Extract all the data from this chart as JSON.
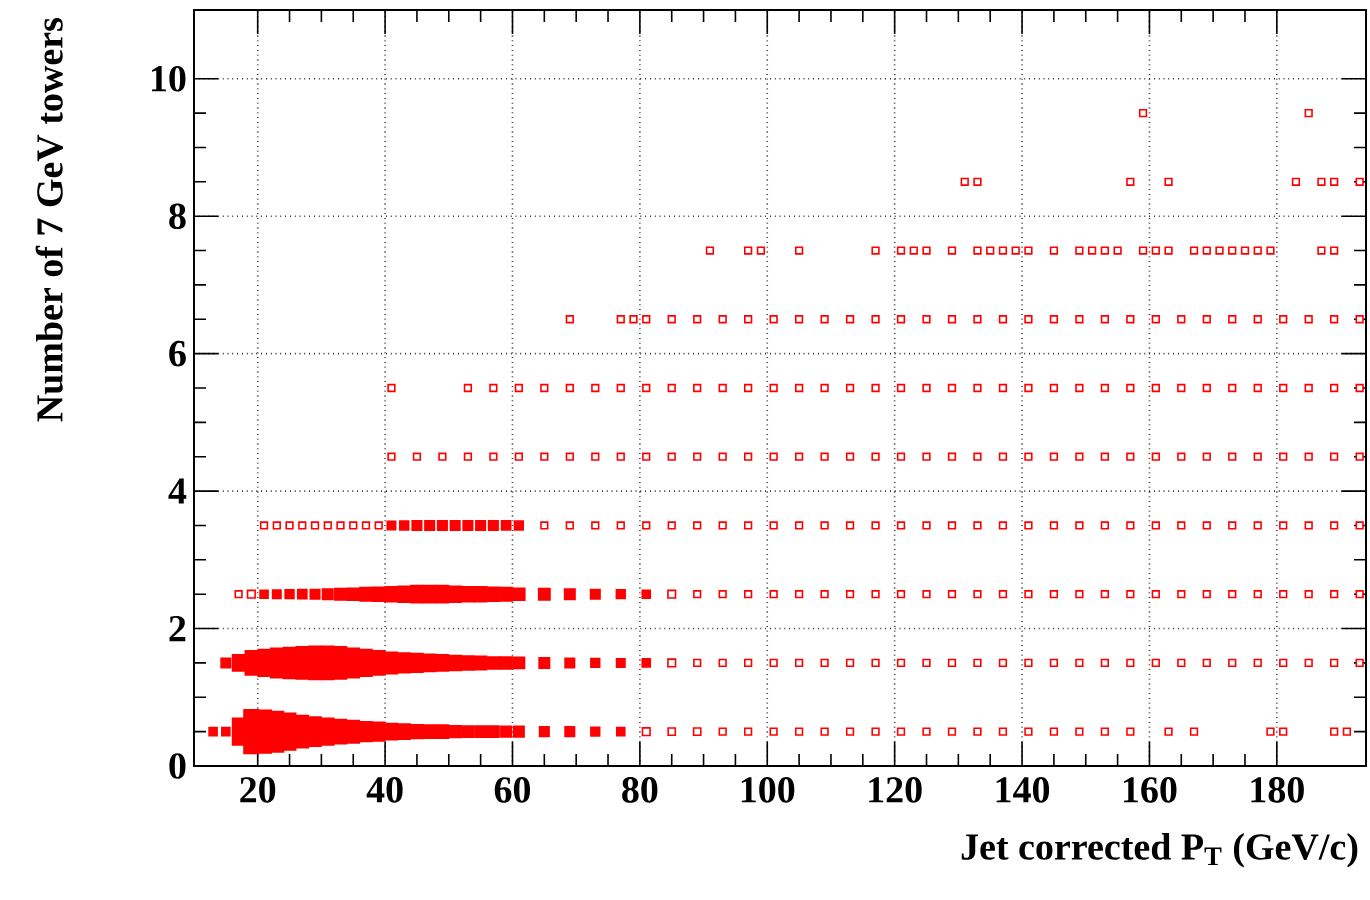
{
  "chart_data": {
    "type": "bubble",
    "xlabel": "Jet corrected P$_{T}$ (GeV/c)",
    "ylabel": "Number of 7 GeV towers",
    "xlim": [
      10,
      194
    ],
    "ylim": [
      0,
      11
    ],
    "xticks": [
      20,
      40,
      60,
      80,
      100,
      120,
      140,
      160,
      180
    ],
    "yticks": [
      0,
      2,
      4,
      6,
      8,
      10
    ],
    "grid": true,
    "marker": "square",
    "series": [
      {
        "color": "#ff0000",
        "x": [
          13,
          15,
          17,
          19,
          21,
          23,
          25,
          27,
          29,
          31,
          33,
          35,
          37,
          39,
          41,
          43,
          45,
          47,
          49,
          51,
          53,
          55,
          57,
          59,
          61,
          65,
          69,
          73,
          77,
          81,
          85,
          89,
          93,
          97,
          101,
          105,
          109,
          113,
          117,
          121,
          125,
          129,
          133,
          137,
          141,
          145,
          149,
          153,
          157,
          163,
          167,
          179,
          181,
          189,
          191
        ],
        "values": [
          0.5,
          0.5,
          0.5,
          0.5,
          0.5,
          0.5,
          0.5,
          0.5,
          0.5,
          0.5,
          0.5,
          0.5,
          0.5,
          0.5,
          0.5,
          0.5,
          0.5,
          0.5,
          0.5,
          0.5,
          0.5,
          0.5,
          0.5,
          0.5,
          0.5,
          0.5,
          0.5,
          0.5,
          0.5,
          0.5,
          0.5,
          0.5,
          0.5,
          0.5,
          0.5,
          0.5,
          0.5,
          0.5,
          0.5,
          0.5,
          0.5,
          0.5,
          0.5,
          0.5,
          0.5,
          0.5,
          0.5,
          0.5,
          0.5,
          0.5,
          0.5,
          0.5,
          0.5,
          0.5,
          0.5
        ],
        "sizes": [
          0.1,
          0.1,
          0.5,
          1,
          0.95,
          0.85,
          0.7,
          0.6,
          0.55,
          0.5,
          0.45,
          0.42,
          0.37,
          0.35,
          0.3,
          0.28,
          0.26,
          0.25,
          0.25,
          0.22,
          0.2,
          0.2,
          0.2,
          0.17,
          0.17,
          0.14,
          0.14,
          0.12,
          0.1,
          0.09,
          0.08,
          0.08,
          0.07,
          0.07,
          0.07,
          0.07,
          0.07,
          0.07,
          0.07,
          0.07,
          0.07,
          0.07,
          0.07,
          0.07,
          0.07,
          0.07,
          0.07,
          0.07,
          0.07,
          0.07,
          0.07,
          0.07,
          0.07,
          0.07,
          0.07
        ]
      },
      {
        "color": "#ff0000",
        "x": [
          15,
          17,
          19,
          21,
          23,
          25,
          27,
          29,
          31,
          33,
          35,
          37,
          39,
          41,
          43,
          45,
          47,
          49,
          51,
          53,
          55,
          57,
          59,
          61,
          65,
          69,
          73,
          77,
          81,
          85,
          89,
          93,
          97,
          101,
          105,
          109,
          113,
          117,
          121,
          125,
          129,
          133,
          137,
          141,
          145,
          149,
          153,
          157,
          161,
          165,
          169,
          173,
          177,
          181,
          185,
          189,
          193
        ],
        "values": [
          1.5,
          1.5,
          1.5,
          1.5,
          1.5,
          1.5,
          1.5,
          1.5,
          1.5,
          1.5,
          1.5,
          1.5,
          1.5,
          1.5,
          1.5,
          1.5,
          1.5,
          1.5,
          1.5,
          1.5,
          1.5,
          1.5,
          1.5,
          1.5,
          1.5,
          1.5,
          1.5,
          1.5,
          1.5,
          1.5,
          1.5,
          1.5,
          1.5,
          1.5,
          1.5,
          1.5,
          1.5,
          1.5,
          1.5,
          1.5,
          1.5,
          1.5,
          1.5,
          1.5,
          1.5,
          1.5,
          1.5,
          1.5,
          1.5,
          1.5,
          1.5,
          1.5,
          1.5,
          1.5,
          1.5,
          1.5,
          1.5
        ],
        "sizes": [
          0.14,
          0.3,
          0.45,
          0.5,
          0.55,
          0.58,
          0.6,
          0.62,
          0.62,
          0.6,
          0.55,
          0.5,
          0.45,
          0.4,
          0.37,
          0.35,
          0.32,
          0.3,
          0.28,
          0.26,
          0.25,
          0.22,
          0.22,
          0.2,
          0.17,
          0.14,
          0.12,
          0.11,
          0.1,
          0.09,
          0.07,
          0.07,
          0.07,
          0.07,
          0.07,
          0.07,
          0.07,
          0.07,
          0.07,
          0.07,
          0.07,
          0.07,
          0.07,
          0.07,
          0.07,
          0.07,
          0.07,
          0.07,
          0.07,
          0.07,
          0.07,
          0.07,
          0.07,
          0.07,
          0.07,
          0.07,
          0.07
        ]
      },
      {
        "color": "#ff0000",
        "x": [
          17,
          19,
          21,
          23,
          25,
          27,
          29,
          31,
          33,
          35,
          37,
          39,
          41,
          43,
          45,
          47,
          49,
          51,
          53,
          55,
          57,
          59,
          61,
          65,
          69,
          73,
          77,
          81,
          85,
          89,
          93,
          97,
          101,
          105,
          109,
          113,
          117,
          121,
          125,
          129,
          133,
          137,
          141,
          145,
          149,
          153,
          157,
          161,
          165,
          169,
          173,
          177,
          181,
          185,
          189,
          193
        ],
        "values": [
          2.5,
          2.5,
          2.5,
          2.5,
          2.5,
          2.5,
          2.5,
          2.5,
          2.5,
          2.5,
          2.5,
          2.5,
          2.5,
          2.5,
          2.5,
          2.5,
          2.5,
          2.5,
          2.5,
          2.5,
          2.5,
          2.5,
          2.5,
          2.5,
          2.5,
          2.5,
          2.5,
          2.5,
          2.5,
          2.5,
          2.5,
          2.5,
          2.5,
          2.5,
          2.5,
          2.5,
          2.5,
          2.5,
          2.5,
          2.5,
          2.5,
          2.5,
          2.5,
          2.5,
          2.5,
          2.5,
          2.5,
          2.5,
          2.5,
          2.5,
          2.5,
          2.5,
          2.5,
          2.5,
          2.5,
          2.5
        ],
        "sizes": [
          0.07,
          0.09,
          0.1,
          0.11,
          0.12,
          0.13,
          0.14,
          0.17,
          0.2,
          0.22,
          0.25,
          0.26,
          0.28,
          0.3,
          0.32,
          0.32,
          0.32,
          0.3,
          0.28,
          0.28,
          0.26,
          0.25,
          0.22,
          0.2,
          0.17,
          0.14,
          0.12,
          0.1,
          0.09,
          0.07,
          0.07,
          0.07,
          0.07,
          0.07,
          0.07,
          0.07,
          0.07,
          0.07,
          0.07,
          0.07,
          0.07,
          0.07,
          0.07,
          0.07,
          0.07,
          0.07,
          0.07,
          0.07,
          0.07,
          0.07,
          0.07,
          0.07,
          0.07,
          0.07,
          0.07,
          0.07
        ]
      },
      {
        "color": "#ff0000",
        "x": [
          21,
          23,
          25,
          27,
          29,
          31,
          33,
          35,
          37,
          39,
          41,
          43,
          45,
          47,
          49,
          51,
          53,
          55,
          57,
          59,
          61,
          65,
          69,
          73,
          77,
          81,
          85,
          89,
          93,
          97,
          101,
          105,
          109,
          113,
          117,
          121,
          125,
          129,
          133,
          137,
          141,
          145,
          149,
          153,
          157,
          161,
          165,
          169,
          173,
          177,
          181,
          185,
          189,
          193
        ],
        "values": [
          3.5,
          3.5,
          3.5,
          3.5,
          3.5,
          3.5,
          3.5,
          3.5,
          3.5,
          3.5,
          3.5,
          3.5,
          3.5,
          3.5,
          3.5,
          3.5,
          3.5,
          3.5,
          3.5,
          3.5,
          3.5,
          3.5,
          3.5,
          3.5,
          3.5,
          3.5,
          3.5,
          3.5,
          3.5,
          3.5,
          3.5,
          3.5,
          3.5,
          3.5,
          3.5,
          3.5,
          3.5,
          3.5,
          3.5,
          3.5,
          3.5,
          3.5,
          3.5,
          3.5,
          3.5,
          3.5,
          3.5,
          3.5,
          3.5,
          3.5,
          3.5,
          3.5,
          3.5,
          3.5
        ],
        "sizes": [
          0.07,
          0.07,
          0.07,
          0.07,
          0.07,
          0.07,
          0.07,
          0.07,
          0.07,
          0.07,
          0.11,
          0.12,
          0.14,
          0.14,
          0.14,
          0.14,
          0.14,
          0.14,
          0.14,
          0.13,
          0.12,
          0.07,
          0.07,
          0.07,
          0.07,
          0.07,
          0.07,
          0.07,
          0.07,
          0.07,
          0.07,
          0.07,
          0.07,
          0.07,
          0.07,
          0.07,
          0.07,
          0.07,
          0.07,
          0.07,
          0.07,
          0.07,
          0.07,
          0.07,
          0.07,
          0.07,
          0.07,
          0.07,
          0.07,
          0.07,
          0.07,
          0.07,
          0.07,
          0.07
        ]
      },
      {
        "color": "#ff0000",
        "x": [
          41,
          45,
          49,
          53,
          57,
          61,
          65,
          69,
          73,
          77,
          81,
          85,
          89,
          93,
          97,
          101,
          105,
          109,
          113,
          117,
          121,
          125,
          129,
          133,
          137,
          141,
          145,
          149,
          153,
          157,
          161,
          165,
          169,
          173,
          177,
          181,
          185,
          189,
          193
        ],
        "values": [
          4.5,
          4.5,
          4.5,
          4.5,
          4.5,
          4.5,
          4.5,
          4.5,
          4.5,
          4.5,
          4.5,
          4.5,
          4.5,
          4.5,
          4.5,
          4.5,
          4.5,
          4.5,
          4.5,
          4.5,
          4.5,
          4.5,
          4.5,
          4.5,
          4.5,
          4.5,
          4.5,
          4.5,
          4.5,
          4.5,
          4.5,
          4.5,
          4.5,
          4.5,
          4.5,
          4.5,
          4.5,
          4.5,
          4.5
        ],
        "sizes": [
          0.07,
          0.07,
          0.07,
          0.07,
          0.07,
          0.07,
          0.07,
          0.07,
          0.07,
          0.07,
          0.07,
          0.07,
          0.07,
          0.07,
          0.07,
          0.07,
          0.07,
          0.07,
          0.07,
          0.07,
          0.07,
          0.07,
          0.07,
          0.07,
          0.07,
          0.07,
          0.07,
          0.07,
          0.07,
          0.07,
          0.07,
          0.07,
          0.07,
          0.07,
          0.07,
          0.07,
          0.07,
          0.07,
          0.07
        ]
      },
      {
        "color": "#ff0000",
        "x": [
          41,
          53,
          57,
          61,
          65,
          69,
          73,
          77,
          81,
          85,
          89,
          93,
          97,
          101,
          105,
          109,
          113,
          117,
          121,
          125,
          129,
          133,
          137,
          141,
          145,
          149,
          153,
          157,
          161,
          165,
          169,
          173,
          177,
          181,
          185,
          189,
          193
        ],
        "values": [
          5.5,
          5.5,
          5.5,
          5.5,
          5.5,
          5.5,
          5.5,
          5.5,
          5.5,
          5.5,
          5.5,
          5.5,
          5.5,
          5.5,
          5.5,
          5.5,
          5.5,
          5.5,
          5.5,
          5.5,
          5.5,
          5.5,
          5.5,
          5.5,
          5.5,
          5.5,
          5.5,
          5.5,
          5.5,
          5.5,
          5.5,
          5.5,
          5.5,
          5.5,
          5.5,
          5.5,
          5.5
        ],
        "sizes": [
          0.07,
          0.07,
          0.07,
          0.07,
          0.07,
          0.07,
          0.07,
          0.07,
          0.07,
          0.07,
          0.07,
          0.07,
          0.07,
          0.07,
          0.07,
          0.07,
          0.07,
          0.07,
          0.07,
          0.07,
          0.07,
          0.07,
          0.07,
          0.07,
          0.07,
          0.07,
          0.07,
          0.07,
          0.07,
          0.07,
          0.07,
          0.07,
          0.07,
          0.07,
          0.07,
          0.07,
          0.07
        ]
      },
      {
        "color": "#ff0000",
        "x": [
          69,
          77,
          79,
          81,
          85,
          89,
          93,
          97,
          101,
          105,
          109,
          113,
          117,
          121,
          125,
          129,
          133,
          137,
          141,
          145,
          149,
          153,
          157,
          161,
          165,
          169,
          173,
          177,
          181,
          185,
          189,
          193
        ],
        "values": [
          6.5,
          6.5,
          6.5,
          6.5,
          6.5,
          6.5,
          6.5,
          6.5,
          6.5,
          6.5,
          6.5,
          6.5,
          6.5,
          6.5,
          6.5,
          6.5,
          6.5,
          6.5,
          6.5,
          6.5,
          6.5,
          6.5,
          6.5,
          6.5,
          6.5,
          6.5,
          6.5,
          6.5,
          6.5,
          6.5,
          6.5,
          6.5
        ],
        "sizes": [
          0.07,
          0.07,
          0.07,
          0.07,
          0.07,
          0.07,
          0.07,
          0.07,
          0.07,
          0.07,
          0.07,
          0.07,
          0.07,
          0.07,
          0.07,
          0.07,
          0.07,
          0.07,
          0.07,
          0.07,
          0.07,
          0.07,
          0.07,
          0.07,
          0.07,
          0.07,
          0.07,
          0.07,
          0.07,
          0.07,
          0.07,
          0.07
        ]
      },
      {
        "color": "#ff0000",
        "x": [
          91,
          97,
          99,
          105,
          117,
          121,
          123,
          125,
          129,
          133,
          135,
          137,
          139,
          141,
          145,
          149,
          151,
          153,
          155,
          159,
          161,
          163,
          167,
          169,
          171,
          173,
          175,
          177,
          179,
          187,
          189
        ],
        "values": [
          7.5,
          7.5,
          7.5,
          7.5,
          7.5,
          7.5,
          7.5,
          7.5,
          7.5,
          7.5,
          7.5,
          7.5,
          7.5,
          7.5,
          7.5,
          7.5,
          7.5,
          7.5,
          7.5,
          7.5,
          7.5,
          7.5,
          7.5,
          7.5,
          7.5,
          7.5,
          7.5,
          7.5,
          7.5,
          7.5,
          7.5
        ],
        "sizes": [
          0.07,
          0.07,
          0.07,
          0.07,
          0.07,
          0.07,
          0.07,
          0.07,
          0.07,
          0.07,
          0.07,
          0.07,
          0.07,
          0.07,
          0.07,
          0.07,
          0.07,
          0.07,
          0.07,
          0.07,
          0.07,
          0.07,
          0.07,
          0.07,
          0.07,
          0.07,
          0.07,
          0.07,
          0.07,
          0.07,
          0.07
        ]
      },
      {
        "color": "#ff0000",
        "x": [
          131,
          133,
          157,
          163,
          183,
          187,
          189,
          193
        ],
        "values": [
          8.5,
          8.5,
          8.5,
          8.5,
          8.5,
          8.5,
          8.5,
          8.5
        ],
        "sizes": [
          0.07,
          0.07,
          0.07,
          0.07,
          0.07,
          0.07,
          0.07,
          0.07
        ]
      },
      {
        "color": "#ff0000",
        "x": [
          159,
          185
        ],
        "values": [
          9.5,
          9.5
        ],
        "sizes": [
          0.07,
          0.07
        ]
      }
    ]
  }
}
